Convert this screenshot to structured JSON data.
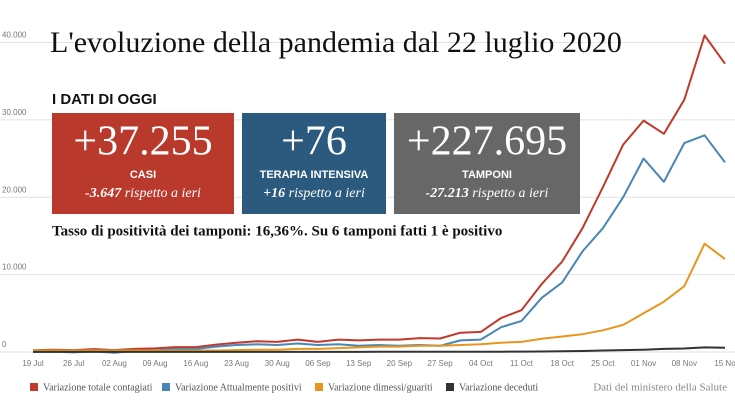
{
  "chart_data": {
    "type": "line",
    "title": "L'evoluzione della pandemia dal 22 luglio 2020",
    "categories": [
      "19 Jul",
      null,
      "26 Jul",
      null,
      "02 Aug",
      null,
      "09 Aug",
      null,
      "16 Aug",
      null,
      "23 Aug",
      null,
      "30 Aug",
      null,
      "06 Sep",
      null,
      "13 Sep",
      null,
      "20 Sep",
      null,
      "27 Sep",
      null,
      "04 Oct",
      null,
      "11 Oct",
      null,
      "18 Oct",
      null,
      "25 Oct",
      null,
      "01 Nov",
      null,
      "08 Nov",
      null,
      "15 No"
    ],
    "series": [
      {
        "name": "Variazione totale contagiati",
        "color": "#c0392b",
        "values": [
          220,
          280,
          250,
          380,
          240,
          400,
          460,
          630,
          630,
          950,
          1200,
          1400,
          1300,
          1600,
          1300,
          1600,
          1500,
          1600,
          1600,
          1800,
          1750,
          2500,
          2600,
          4400,
          5400,
          8800,
          11700,
          16000,
          21300,
          26800,
          29900,
          28200,
          32600,
          40900,
          37255
        ]
      },
      {
        "name": "Variazione Attualmente positivi",
        "color": "#4a86b5",
        "values": [
          0,
          50,
          -50,
          100,
          -100,
          150,
          200,
          400,
          400,
          700,
          900,
          1000,
          900,
          1100,
          900,
          1000,
          800,
          900,
          800,
          900,
          800,
          1500,
          1600,
          3200,
          4000,
          7000,
          9000,
          13000,
          16000,
          20000,
          25000,
          22000,
          27000,
          28000,
          24500
        ]
      },
      {
        "name": "Variazione dimessi/guariti",
        "color": "#e8961e",
        "values": [
          200,
          200,
          200,
          200,
          200,
          200,
          150,
          200,
          200,
          200,
          250,
          300,
          300,
          400,
          400,
          500,
          600,
          700,
          700,
          800,
          800,
          900,
          1000,
          1200,
          1300,
          1700,
          2000,
          2300,
          2800,
          3500,
          5000,
          6500,
          8500,
          14000,
          12000
        ]
      },
      {
        "name": "Variazione deceduti",
        "color": "#333333",
        "values": [
          10,
          10,
          10,
          10,
          10,
          10,
          10,
          10,
          10,
          10,
          10,
          10,
          10,
          10,
          15,
          15,
          15,
          20,
          20,
          20,
          20,
          25,
          30,
          40,
          50,
          70,
          100,
          130,
          200,
          250,
          300,
          400,
          450,
          600,
          550
        ]
      }
    ],
    "ylim": [
      0,
      42000
    ],
    "yticks": [
      0,
      {
        "value": 10000,
        "label": "10.000"
      },
      {
        "value": 20000,
        "label": "20.000"
      },
      {
        "value": 30000,
        "label": "30.000"
      },
      {
        "value": 40000,
        "label": "40.000"
      }
    ],
    "grid": true
  },
  "subtitle": "I DATI DI OGGI",
  "stats": [
    {
      "value": "+37.255",
      "label": "CASI",
      "delta": "-3.647",
      "delta_text": "rispetto a ieri",
      "color": "#b93a2c"
    },
    {
      "value": "+76",
      "label": "TERAPIA INTENSIVA",
      "delta": "+16",
      "delta_text": "rispetto a ieri",
      "color": "#2b5a7e"
    },
    {
      "value": "+227.695",
      "label": "TAMPONI",
      "delta": "-27.213",
      "delta_text": "rispetto a ieri",
      "color": "#676767"
    }
  ],
  "note": "Tasso di positività dei tamponi: 16,36%. Su 6 tamponi fatti 1 è positivo",
  "source": "Dati del ministero della Salute"
}
